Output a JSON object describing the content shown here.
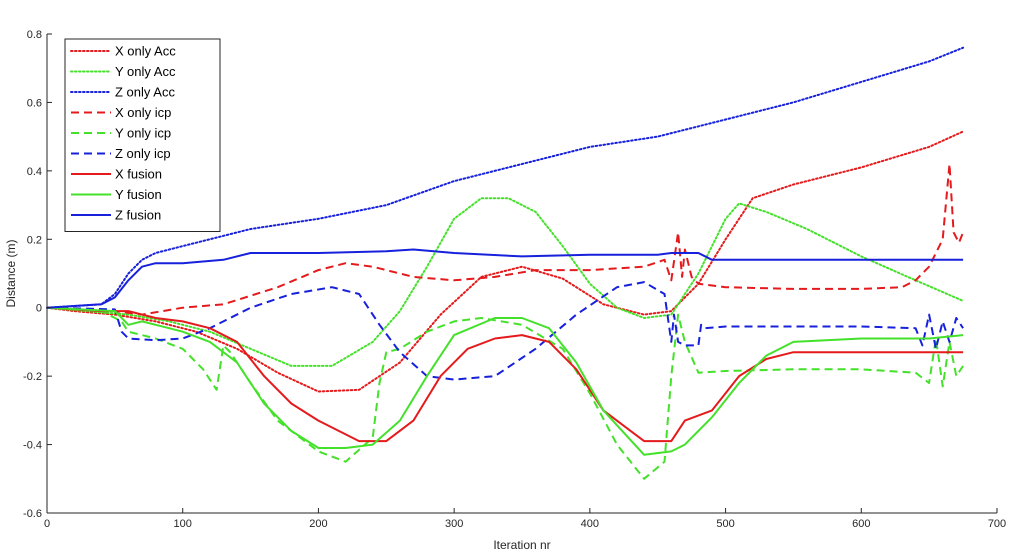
{
  "chart_data": {
    "type": "line",
    "title": "",
    "xlabel": "Iteration nr",
    "ylabel": "Distance (m)",
    "xlim": [
      0,
      700
    ],
    "ylim": [
      -0.6,
      0.8
    ],
    "xticks": [
      0,
      100,
      200,
      300,
      400,
      500,
      600,
      700
    ],
    "yticks": [
      -0.6,
      -0.4,
      -0.2,
      0,
      0.2,
      0.4,
      0.6,
      0.8
    ],
    "xtick_labels": [
      "0",
      "100",
      "200",
      "300",
      "400",
      "500",
      "600",
      "700"
    ],
    "ytick_labels": [
      "-0.6",
      "-0.4",
      "-0.2",
      "0",
      "0.2",
      "0.4",
      "0.6",
      "0.8"
    ],
    "grid": false,
    "legend_position": "top-left",
    "series": [
      {
        "name": "X only Acc",
        "color": "#e41a1c",
        "style": "dotted",
        "x": [
          0,
          20,
          50,
          80,
          110,
          140,
          170,
          200,
          230,
          260,
          290,
          320,
          350,
          380,
          410,
          440,
          460,
          480,
          500,
          520,
          550,
          600,
          650,
          675
        ],
        "y": [
          0,
          -0.01,
          -0.02,
          -0.04,
          -0.07,
          -0.12,
          -0.19,
          -0.245,
          -0.24,
          -0.16,
          -0.02,
          0.09,
          0.12,
          0.085,
          0.01,
          -0.02,
          -0.01,
          0.07,
          0.2,
          0.32,
          0.36,
          0.41,
          0.47,
          0.515
        ]
      },
      {
        "name": "Y only Acc",
        "color": "#44e12a",
        "style": "dotted",
        "x": [
          0,
          30,
          60,
          90,
          120,
          150,
          180,
          210,
          240,
          260,
          280,
          300,
          320,
          340,
          360,
          380,
          400,
          420,
          440,
          460,
          480,
          500,
          510,
          530,
          560,
          600,
          640,
          675
        ],
        "y": [
          0,
          -0.01,
          -0.02,
          -0.04,
          -0.07,
          -0.12,
          -0.17,
          -0.17,
          -0.1,
          -0.01,
          0.12,
          0.26,
          0.32,
          0.32,
          0.28,
          0.18,
          0.07,
          0.0,
          -0.03,
          -0.02,
          0.1,
          0.26,
          0.305,
          0.28,
          0.23,
          0.15,
          0.08,
          0.02
        ]
      },
      {
        "name": "Z only Acc",
        "color": "#1721db",
        "style": "dotted",
        "x": [
          0,
          40,
          50,
          60,
          70,
          80,
          100,
          150,
          200,
          250,
          300,
          350,
          400,
          450,
          500,
          550,
          600,
          650,
          675
        ],
        "y": [
          0,
          0.01,
          0.04,
          0.1,
          0.14,
          0.16,
          0.18,
          0.23,
          0.26,
          0.3,
          0.37,
          0.42,
          0.47,
          0.5,
          0.55,
          0.6,
          0.66,
          0.72,
          0.76
        ]
      },
      {
        "name": "X only icp",
        "color": "#e41a1c",
        "style": "dashed",
        "x": [
          0,
          50,
          70,
          100,
          130,
          170,
          200,
          220,
          240,
          270,
          300,
          330,
          360,
          400,
          440,
          455,
          460,
          465,
          468,
          470,
          475,
          480,
          500,
          550,
          600,
          630,
          640,
          650,
          660,
          665,
          668,
          672,
          675
        ],
        "y": [
          0,
          -0.01,
          -0.02,
          0.0,
          0.01,
          0.06,
          0.11,
          0.13,
          0.12,
          0.09,
          0.08,
          0.09,
          0.11,
          0.11,
          0.12,
          0.14,
          0.08,
          0.22,
          0.09,
          0.17,
          0.09,
          0.07,
          0.06,
          0.055,
          0.055,
          0.06,
          0.08,
          0.12,
          0.2,
          0.42,
          0.22,
          0.19,
          0.22
        ]
      },
      {
        "name": "Y only icp",
        "color": "#44e12a",
        "style": "dashed",
        "x": [
          0,
          40,
          55,
          60,
          80,
          100,
          115,
          125,
          130,
          135,
          150,
          170,
          200,
          220,
          240,
          245,
          250,
          260,
          280,
          300,
          320,
          350,
          380,
          400,
          420,
          440,
          455,
          460,
          465,
          470,
          480,
          500,
          550,
          600,
          640,
          650,
          655,
          660,
          665,
          670,
          675
        ],
        "y": [
          0,
          -0.01,
          -0.04,
          -0.07,
          -0.09,
          -0.12,
          -0.18,
          -0.24,
          -0.11,
          -0.13,
          -0.22,
          -0.33,
          -0.42,
          -0.45,
          -0.38,
          -0.22,
          -0.13,
          -0.12,
          -0.07,
          -0.04,
          -0.03,
          -0.05,
          -0.12,
          -0.25,
          -0.4,
          -0.5,
          -0.45,
          -0.2,
          -0.02,
          -0.1,
          -0.19,
          -0.185,
          -0.18,
          -0.18,
          -0.19,
          -0.22,
          -0.09,
          -0.23,
          -0.1,
          -0.2,
          -0.17
        ]
      },
      {
        "name": "Z only icp",
        "color": "#1721db",
        "style": "dashed",
        "x": [
          0,
          50,
          55,
          60,
          80,
          100,
          120,
          150,
          180,
          210,
          230,
          245,
          260,
          280,
          300,
          330,
          360,
          390,
          420,
          440,
          455,
          460,
          462,
          465,
          470,
          480,
          482,
          485,
          500,
          550,
          600,
          640,
          645,
          650,
          655,
          660,
          665,
          670,
          675
        ],
        "y": [
          0,
          -0.005,
          -0.07,
          -0.09,
          -0.095,
          -0.09,
          -0.06,
          0.0,
          0.04,
          0.06,
          0.04,
          -0.05,
          -0.13,
          -0.2,
          -0.21,
          -0.2,
          -0.12,
          -0.02,
          0.06,
          0.075,
          0.04,
          -0.1,
          -0.02,
          -0.1,
          -0.11,
          -0.11,
          -0.05,
          -0.06,
          -0.055,
          -0.055,
          -0.055,
          -0.06,
          -0.11,
          -0.02,
          -0.12,
          -0.04,
          -0.1,
          -0.03,
          -0.06
        ]
      },
      {
        "name": "X fusion",
        "color": "#e41a1c",
        "style": "solid",
        "x": [
          0,
          40,
          60,
          80,
          100,
          120,
          140,
          160,
          180,
          200,
          230,
          250,
          270,
          290,
          310,
          330,
          350,
          370,
          390,
          410,
          440,
          460,
          470,
          490,
          510,
          530,
          550,
          600,
          650,
          675
        ],
        "y": [
          0,
          -0.01,
          -0.01,
          -0.03,
          -0.04,
          -0.06,
          -0.1,
          -0.2,
          -0.28,
          -0.33,
          -0.39,
          -0.39,
          -0.33,
          -0.2,
          -0.12,
          -0.09,
          -0.08,
          -0.1,
          -0.18,
          -0.3,
          -0.39,
          -0.39,
          -0.33,
          -0.3,
          -0.2,
          -0.15,
          -0.13,
          -0.13,
          -0.13,
          -0.13
        ]
      },
      {
        "name": "Y fusion",
        "color": "#44e12a",
        "style": "solid",
        "x": [
          0,
          50,
          60,
          70,
          90,
          100,
          120,
          140,
          160,
          180,
          200,
          220,
          240,
          260,
          280,
          300,
          330,
          350,
          370,
          390,
          410,
          440,
          460,
          470,
          490,
          510,
          530,
          550,
          600,
          650,
          675
        ],
        "y": [
          0,
          -0.01,
          -0.05,
          -0.04,
          -0.06,
          -0.07,
          -0.1,
          -0.16,
          -0.28,
          -0.36,
          -0.41,
          -0.41,
          -0.4,
          -0.33,
          -0.2,
          -0.08,
          -0.03,
          -0.03,
          -0.06,
          -0.16,
          -0.3,
          -0.43,
          -0.42,
          -0.4,
          -0.32,
          -0.22,
          -0.14,
          -0.1,
          -0.09,
          -0.09,
          -0.08
        ]
      },
      {
        "name": "Z fusion",
        "color": "#1721db",
        "style": "solid",
        "x": [
          0,
          40,
          50,
          60,
          70,
          80,
          100,
          130,
          150,
          200,
          250,
          270,
          300,
          350,
          400,
          450,
          460,
          480,
          490,
          500,
          550,
          600,
          650,
          675
        ],
        "y": [
          0,
          0.01,
          0.03,
          0.08,
          0.12,
          0.13,
          0.13,
          0.14,
          0.16,
          0.16,
          0.165,
          0.17,
          0.16,
          0.15,
          0.155,
          0.155,
          0.16,
          0.16,
          0.14,
          0.14,
          0.14,
          0.14,
          0.14,
          0.14
        ]
      }
    ]
  }
}
